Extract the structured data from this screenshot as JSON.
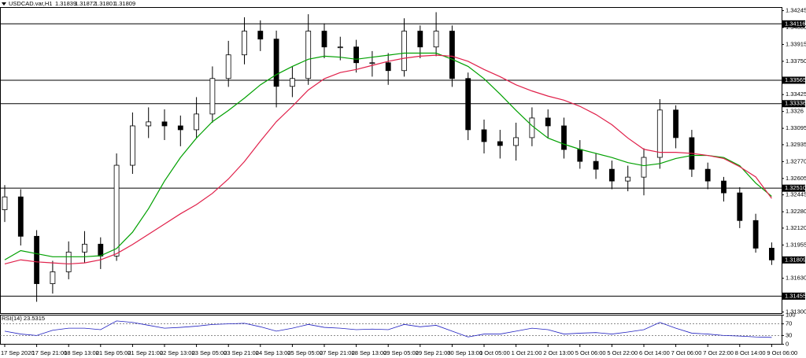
{
  "chart_data": [
    {
      "type": "candlestick",
      "title": "USDCAD.var,H1",
      "header_values": [
        "1.31839",
        "1.31872",
        "1.31801",
        "1.31809"
      ],
      "categories": [
        "17 Sep 2020",
        null,
        "17 Sep 21:00",
        null,
        "18 Sep 13:00",
        null,
        "21 Sep 05:00",
        null,
        "21 Sep 21:00",
        null,
        "22 Sep 13:00",
        null,
        "23 Sep 05:00",
        null,
        "23 Sep 21:00",
        null,
        "24 Sep 13:00",
        null,
        "25 Sep 05:00",
        null,
        "27 Sep 21:00",
        null,
        "28 Sep 13:00",
        null,
        "29 Sep 05:00",
        null,
        "29 Sep 21:00",
        null,
        "30 Sep 13:00",
        null,
        "1 Oct 05:00",
        null,
        "1 Oct 21:00",
        null,
        "2 Oct 13:00",
        null,
        "5 Oct 06:00",
        null,
        "5 Oct 22:00",
        null,
        "6 Oct 14:00",
        null,
        "7 Oct 06:00",
        null,
        "7 Oct 22:00",
        null,
        "8 Oct 14:00",
        null,
        "9 Oct 06:00"
      ],
      "open": [
        1.323,
        1.32425,
        1.3204,
        1.31577,
        1.31693,
        1.31886,
        1.31963,
        1.31847,
        1.32734,
        1.33119,
        1.33158,
        1.33119,
        1.33081,
        1.33235,
        1.33582,
        1.33813,
        1.34045,
        1.33967,
        1.33505,
        1.33582,
        1.34045,
        1.3389,
        1.3389,
        1.33736,
        1.33736,
        1.33659,
        1.34045,
        1.3389,
        1.34045,
        1.33582,
        1.33081,
        1.32965,
        1.32927,
        1.33004,
        1.33196,
        1.33119,
        1.32888,
        1.32772,
        1.32695,
        1.3258,
        1.32618,
        1.32811,
        1.33274,
        1.33004,
        1.32695,
        1.3258,
        1.32464,
        1.32194,
        1.31924
      ],
      "high": [
        1.3254,
        1.325,
        1.321,
        1.318,
        1.3199,
        1.3209,
        1.3203,
        1.3285,
        1.3325,
        1.333,
        1.3328,
        1.3322,
        1.334,
        1.337,
        1.3395,
        1.3418,
        1.3415,
        1.3405,
        1.337,
        1.3421,
        1.3412,
        1.3399,
        1.3396,
        1.3385,
        1.3383,
        1.3417,
        1.341,
        1.3423,
        1.341,
        1.3364,
        1.3318,
        1.3308,
        1.3315,
        1.333,
        1.3328,
        1.332,
        1.3298,
        1.3285,
        1.3278,
        1.3273,
        1.329,
        1.3338,
        1.3332,
        1.3308,
        1.3276,
        1.3262,
        1.3252,
        1.3226,
        1.3198
      ],
      "low": [
        1.3218,
        1.3195,
        1.314,
        1.3148,
        1.3162,
        1.3178,
        1.3172,
        1.318,
        1.3265,
        1.33,
        1.3298,
        1.3292,
        1.33,
        1.3315,
        1.335,
        1.3372,
        1.3385,
        1.333,
        1.334,
        1.3352,
        1.3378,
        1.3376,
        1.3364,
        1.336,
        1.3352,
        1.336,
        1.3378,
        1.338,
        1.335,
        1.3298,
        1.3285,
        1.328,
        1.3278,
        1.3292,
        1.33,
        1.328,
        1.327,
        1.326,
        1.325,
        1.3248,
        1.3244,
        1.327,
        1.329,
        1.3262,
        1.325,
        1.3238,
        1.3212,
        1.3188,
        1.3176
      ],
      "close": [
        1.32425,
        1.3204,
        1.31577,
        1.31693,
        1.31886,
        1.31963,
        1.31847,
        1.32734,
        1.33119,
        1.33158,
        1.33119,
        1.33081,
        1.33235,
        1.33582,
        1.33813,
        1.34045,
        1.33967,
        1.33505,
        1.33582,
        1.34045,
        1.3389,
        1.3389,
        1.33736,
        1.33736,
        1.33659,
        1.34045,
        1.3389,
        1.34045,
        1.33582,
        1.33081,
        1.32965,
        1.32927,
        1.33004,
        1.33196,
        1.33119,
        1.32888,
        1.32772,
        1.32695,
        1.3258,
        1.32618,
        1.32811,
        1.33274,
        1.33004,
        1.32695,
        1.3258,
        1.32464,
        1.32194,
        1.31924,
        1.31809
      ],
      "candle_color": "#000000",
      "moving_averages": [
        {
          "color": "#00a000",
          "values": [
            1.3181,
            1.319,
            1.3187,
            1.3184,
            1.3184,
            1.3184,
            1.3185,
            1.3192,
            1.3208,
            1.3231,
            1.3258,
            1.3281,
            1.33,
            1.3316,
            1.3327,
            1.3339,
            1.3352,
            1.3362,
            1.337,
            1.3377,
            1.338,
            1.3379,
            1.3377,
            1.3379,
            1.3381,
            1.3383,
            1.3383,
            1.3383,
            1.3377,
            1.337,
            1.3358,
            1.3343,
            1.3327,
            1.3312,
            1.33,
            1.3294,
            1.3289,
            1.3285,
            1.3281,
            1.3276,
            1.3273,
            1.3275,
            1.328,
            1.3283,
            1.3283,
            1.3281,
            1.3273,
            1.3256,
            1.3243
          ]
        },
        {
          "color": "#e0204a",
          "values": [
            1.3177,
            1.3181,
            1.3179,
            1.3178,
            1.3177,
            1.3178,
            1.3181,
            1.3187,
            1.3196,
            1.3206,
            1.3216,
            1.3226,
            1.3235,
            1.3246,
            1.326,
            1.3277,
            1.3297,
            1.3316,
            1.3331,
            1.3347,
            1.3358,
            1.3364,
            1.3367,
            1.3371,
            1.3375,
            1.3378,
            1.338,
            1.3381,
            1.338,
            1.3375,
            1.3367,
            1.336,
            1.3352,
            1.3346,
            1.3341,
            1.3337,
            1.3331,
            1.3323,
            1.3313,
            1.33,
            1.3289,
            1.3286,
            1.3286,
            1.3285,
            1.3283,
            1.328,
            1.3272,
            1.3262,
            1.3241
          ]
        }
      ],
      "ylim": [
        1.31285,
        1.34276
      ],
      "yticks": [
        1.34245,
        {
          "value": 1.3408,
          "label": "1.34080"
        },
        1.33915,
        {
          "value": 1.3375,
          "label": "1.33750"
        },
        1.33425,
        1.3326,
        1.33095,
        1.32935,
        {
          "value": 1.3277,
          "label": "1.32770"
        },
        1.32605,
        1.32445,
        {
          "value": 1.3228,
          "label": "1.32280"
        },
        {
          "value": 1.3212,
          "label": "1.32120"
        },
        1.31955,
        {
          "value": 1.3163,
          "label": "1.31630"
        },
        {
          "value": 1.313,
          "label": "1.31300"
        }
      ],
      "levels": [
        1.34116,
        1.33565,
        1.33336,
        {
          "value": 1.3251,
          "label": "1.32510"
        },
        1.31455
      ],
      "last_price": 1.31809
    },
    {
      "type": "line",
      "title": "RSI(14) 23.5315",
      "color": "#2020c0",
      "values": [
        45,
        35,
        30,
        48,
        55,
        55,
        50,
        80,
        75,
        65,
        55,
        58,
        62,
        68,
        70,
        72,
        60,
        45,
        55,
        68,
        58,
        55,
        50,
        52,
        50,
        68,
        60,
        65,
        45,
        25,
        35,
        35,
        45,
        55,
        50,
        35,
        38,
        40,
        35,
        42,
        50,
        75,
        55,
        38,
        35,
        30,
        28,
        25,
        23.5315
      ],
      "ylim": [
        0,
        100
      ],
      "yticks": [
        100,
        70,
        30,
        0
      ],
      "levels": [
        70,
        30
      ]
    }
  ]
}
